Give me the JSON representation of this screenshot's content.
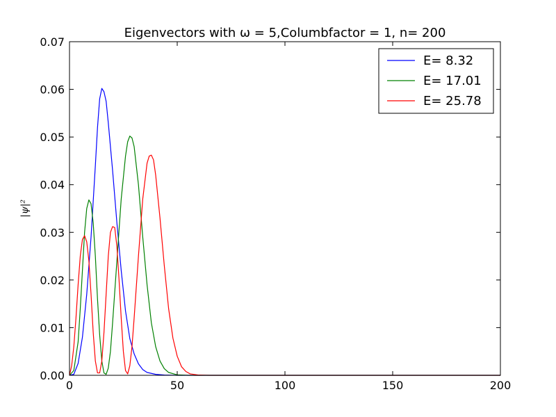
{
  "chart_data": {
    "type": "line",
    "title": "Eigenvectors with ω = 5,Columbfactor = 1, n= 200",
    "xlabel": "",
    "ylabel": "|ψ|²",
    "xlim": [
      0,
      200
    ],
    "ylim": [
      0,
      0.07
    ],
    "x_ticks": [
      "0",
      "50",
      "100",
      "150",
      "200"
    ],
    "y_ticks": [
      "0.00",
      "0.01",
      "0.02",
      "0.03",
      "0.04",
      "0.05",
      "0.06",
      "0.07"
    ],
    "legend_position": "top-right",
    "grid": false,
    "series": [
      {
        "name": "E= 8.32",
        "color": "#0000ff",
        "points": [
          [
            0,
            0
          ],
          [
            2,
            0.0002
          ],
          [
            4,
            0.0025
          ],
          [
            6,
            0.008
          ],
          [
            8,
            0.017
          ],
          [
            10,
            0.029
          ],
          [
            12,
            0.044
          ],
          [
            13,
            0.052
          ],
          [
            14,
            0.058
          ],
          [
            15,
            0.0602
          ],
          [
            16,
            0.0595
          ],
          [
            17,
            0.0575
          ],
          [
            18,
            0.053
          ],
          [
            20,
            0.043
          ],
          [
            22,
            0.032
          ],
          [
            24,
            0.022
          ],
          [
            26,
            0.0135
          ],
          [
            28,
            0.0077
          ],
          [
            30,
            0.0045
          ],
          [
            32,
            0.0024
          ],
          [
            34,
            0.0012
          ],
          [
            36,
            0.0006
          ],
          [
            40,
            0.0002
          ],
          [
            44,
            5e-05
          ],
          [
            50,
            0
          ],
          [
            200,
            0
          ]
        ]
      },
      {
        "name": "E= 17.01",
        "color": "#008000",
        "points": [
          [
            0,
            0
          ],
          [
            2,
            0.001
          ],
          [
            4,
            0.007
          ],
          [
            5,
            0.014
          ],
          [
            6,
            0.022
          ],
          [
            7,
            0.03
          ],
          [
            8,
            0.035
          ],
          [
            9,
            0.0368
          ],
          [
            10,
            0.036
          ],
          [
            11,
            0.032
          ],
          [
            12,
            0.025
          ],
          [
            13,
            0.016
          ],
          [
            14,
            0.0085
          ],
          [
            15,
            0.003
          ],
          [
            16,
            0.0005
          ],
          [
            17,
            0.0002
          ],
          [
            18,
            0.0015
          ],
          [
            19,
            0.005
          ],
          [
            20,
            0.011
          ],
          [
            22,
            0.024
          ],
          [
            24,
            0.037
          ],
          [
            26,
            0.046
          ],
          [
            27,
            0.049
          ],
          [
            28,
            0.0502
          ],
          [
            29,
            0.0498
          ],
          [
            30,
            0.048
          ],
          [
            32,
            0.04
          ],
          [
            34,
            0.029
          ],
          [
            36,
            0.019
          ],
          [
            38,
            0.011
          ],
          [
            40,
            0.006
          ],
          [
            42,
            0.003
          ],
          [
            44,
            0.0014
          ],
          [
            46,
            0.0006
          ],
          [
            50,
            0.0001
          ],
          [
            55,
            0
          ],
          [
            200,
            0
          ]
        ]
      },
      {
        "name": "E= 25.78",
        "color": "#ff0000",
        "points": [
          [
            0,
            0
          ],
          [
            1,
            0.002
          ],
          [
            2,
            0.006
          ],
          [
            3,
            0.012
          ],
          [
            4,
            0.019
          ],
          [
            5,
            0.025
          ],
          [
            6,
            0.0285
          ],
          [
            7,
            0.0293
          ],
          [
            8,
            0.028
          ],
          [
            9,
            0.024
          ],
          [
            10,
            0.017
          ],
          [
            11,
            0.009
          ],
          [
            12,
            0.003
          ],
          [
            13,
            0.0005
          ],
          [
            14,
            0.0005
          ],
          [
            15,
            0.003
          ],
          [
            16,
            0.009
          ],
          [
            17,
            0.017
          ],
          [
            18,
            0.025
          ],
          [
            19,
            0.03
          ],
          [
            20,
            0.0312
          ],
          [
            21,
            0.031
          ],
          [
            22,
            0.027
          ],
          [
            23,
            0.02
          ],
          [
            24,
            0.012
          ],
          [
            25,
            0.005
          ],
          [
            26,
            0.001
          ],
          [
            27,
            0.0003
          ],
          [
            28,
            0.002
          ],
          [
            29,
            0.006
          ],
          [
            30,
            0.012
          ],
          [
            32,
            0.025
          ],
          [
            34,
            0.037
          ],
          [
            36,
            0.0445
          ],
          [
            37,
            0.046
          ],
          [
            38,
            0.0462
          ],
          [
            39,
            0.0452
          ],
          [
            40,
            0.042
          ],
          [
            42,
            0.033
          ],
          [
            44,
            0.023
          ],
          [
            46,
            0.014
          ],
          [
            48,
            0.0078
          ],
          [
            50,
            0.004
          ],
          [
            52,
            0.0018
          ],
          [
            54,
            0.0008
          ],
          [
            56,
            0.0003
          ],
          [
            60,
            5e-05
          ],
          [
            65,
            0
          ],
          [
            200,
            0
          ]
        ]
      }
    ]
  }
}
